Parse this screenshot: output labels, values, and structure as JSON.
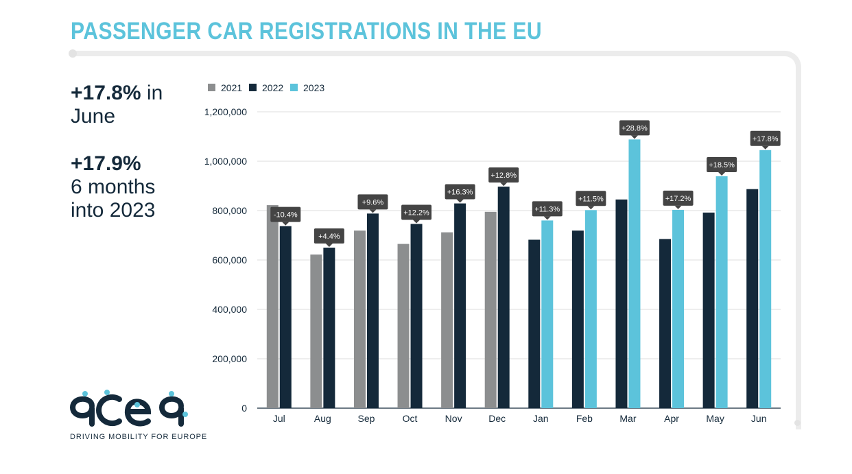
{
  "header": {
    "title": "PASSENGER CAR REGISTRATIONS IN THE EU"
  },
  "highlights": {
    "june": {
      "value": "+17.8%",
      "suffix": " in June"
    },
    "ytd": {
      "value": "+17.9%",
      "line1": "6 months",
      "line2": "into 2023"
    }
  },
  "brand": {
    "name": "acea",
    "tagline": "DRIVING MOBILITY FOR EUROPE"
  },
  "colors": {
    "y2021": "#8c8e8f",
    "y2022": "#14293a",
    "y2023": "#5cc3db",
    "title": "#5cc3db",
    "callout": "#444444"
  },
  "chart_data": {
    "type": "bar",
    "title": "PASSENGER CAR REGISTRATIONS IN THE EU",
    "xlabel": "",
    "ylabel": "",
    "ylim": [
      0,
      1200000
    ],
    "yticks": [
      0,
      200000,
      400000,
      600000,
      800000,
      1000000,
      1200000
    ],
    "ytick_labels": [
      "0",
      "200,000",
      "400,000",
      "600,000",
      "800,000",
      "1,000,000",
      "1,200,000"
    ],
    "grid": true,
    "legend": {
      "placement": "top-left",
      "entries": [
        "2021",
        "2022",
        "2023"
      ]
    },
    "categories": [
      "Jul",
      "Aug",
      "Sep",
      "Oct",
      "Nov",
      "Dec",
      "Jan",
      "Feb",
      "Mar",
      "Apr",
      "May",
      "Jun"
    ],
    "series": [
      {
        "name": "2021",
        "values": [
          822000,
          622000,
          719000,
          665000,
          712000,
          795000,
          null,
          null,
          null,
          null,
          null,
          null
        ]
      },
      {
        "name": "2022",
        "values": [
          737000,
          650000,
          788000,
          746000,
          829000,
          897000,
          682000,
          719000,
          845000,
          685000,
          792000,
          887000
        ]
      },
      {
        "name": "2023",
        "values": [
          null,
          null,
          null,
          null,
          null,
          null,
          760000,
          802000,
          1088000,
          803000,
          939000,
          1045000
        ]
      }
    ],
    "annotations": [
      "-10.4%",
      "+4.4%",
      "+9.6%",
      "+12.2%",
      "+16.3%",
      "+12.8%",
      "+11.3%",
      "+11.5%",
      "+28.8%",
      "+17.2%",
      "+18.5%",
      "+17.8%"
    ]
  }
}
